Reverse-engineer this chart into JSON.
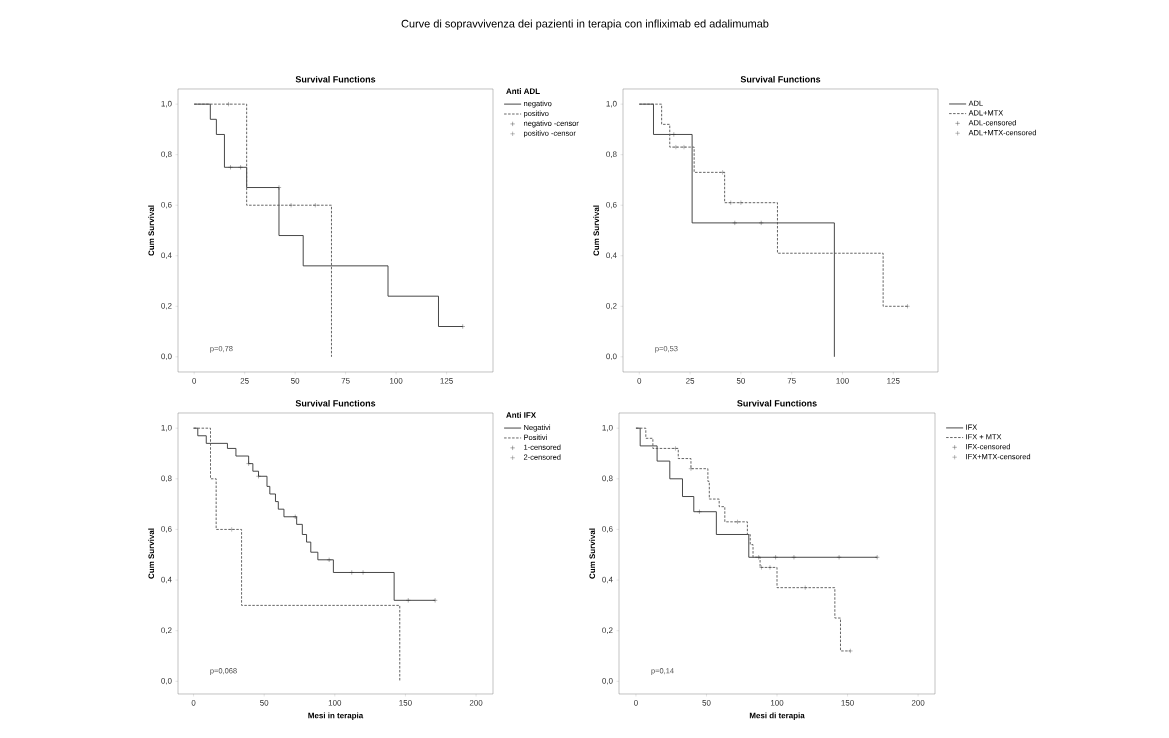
{
  "chart_data": [
    {
      "type": "step",
      "title": "Curve di sopravvivenza dei pazienti in terapia con infliximab ed adalimumab",
      "subtitle": "Survival Functions",
      "ylabel": "Cum Survival",
      "legend_title": "Anti ADL",
      "legend": "right",
      "annotations": [
        "p=0,78"
      ],
      "xlim": [
        -8,
        148
      ],
      "ylim": [
        -0.06,
        1.06
      ],
      "xticks": [
        0,
        25,
        50,
        75,
        100,
        125
      ],
      "yticks": [
        {
          "value": 0,
          "label": "0,0"
        },
        {
          "value": 0.2,
          "label": "0,2"
        },
        {
          "value": 0.4,
          "label": "0,4"
        },
        {
          "value": 0.6,
          "label": "0,6"
        },
        {
          "value": 0.8,
          "label": "0,8"
        },
        {
          "value": 1,
          "label": "1,0"
        }
      ],
      "series": [
        {
          "name": "negativo",
          "line_style": "solid",
          "color": "#333333",
          "x": [
            0,
            8,
            11,
            15,
            26,
            42,
            54,
            96,
            121,
            133
          ],
          "values": [
            1,
            0.94,
            0.88,
            0.75,
            0.67,
            0.48,
            0.36,
            0.24,
            0.12,
            0.12
          ]
        },
        {
          "name": "positivo",
          "line_style": "dashed",
          "color": "#555555",
          "x": [
            0,
            26,
            68
          ],
          "values": [
            1,
            0.6,
            0
          ]
        },
        {
          "name": "negativo -censor",
          "type": "scatter",
          "marker": "cross",
          "color": "#333333",
          "x": [
            18,
            23,
            42,
            133
          ],
          "values": [
            0.75,
            0.75,
            0.67,
            0.12
          ]
        },
        {
          "name": "positivo -censor",
          "type": "scatter",
          "marker": "cross",
          "color": "#555555",
          "x": [
            17,
            48,
            60
          ],
          "values": [
            1,
            0.6,
            0.6
          ]
        }
      ]
    },
    {
      "type": "step",
      "subtitle": "Survival Functions",
      "ylabel": "Cum Survival",
      "legend": "right",
      "annotations": [
        "p=0,53"
      ],
      "xlim": [
        -8,
        147
      ],
      "ylim": [
        -0.06,
        1.06
      ],
      "xticks": [
        0,
        25,
        50,
        75,
        100,
        125
      ],
      "yticks": [
        {
          "value": 0,
          "label": "0,0"
        },
        {
          "value": 0.2,
          "label": "0,2"
        },
        {
          "value": 0.4,
          "label": "0,4"
        },
        {
          "value": 0.6,
          "label": "0,6"
        },
        {
          "value": 0.8,
          "label": "0,8"
        },
        {
          "value": 1,
          "label": "1,0"
        }
      ],
      "series": [
        {
          "name": "ADL",
          "line_style": "solid",
          "color": "#333333",
          "x": [
            0,
            7,
            26,
            96
          ],
          "values": [
            1,
            0.88,
            0.53,
            0
          ]
        },
        {
          "name": "ADL+MTX",
          "line_style": "dashed",
          "color": "#555555",
          "x": [
            0,
            11,
            15,
            27,
            42,
            68,
            120,
            132
          ],
          "values": [
            1,
            0.92,
            0.83,
            0.73,
            0.61,
            0.41,
            0.2,
            0.2
          ]
        },
        {
          "name": "ADL-censored",
          "type": "scatter",
          "marker": "cross",
          "color": "#333333",
          "x": [
            17,
            47,
            60
          ],
          "values": [
            0.88,
            0.53,
            0.53
          ]
        },
        {
          "name": "ADL+MTX-censored",
          "type": "scatter",
          "marker": "cross",
          "color": "#555555",
          "x": [
            18,
            22,
            41,
            45,
            50,
            132
          ],
          "values": [
            0.83,
            0.83,
            0.73,
            0.61,
            0.61,
            0.2
          ]
        }
      ]
    },
    {
      "type": "step",
      "subtitle": "Survival Functions",
      "xlabel": "Mesi in terapia",
      "ylabel": "Cum Survival",
      "legend_title": "Anti IFX",
      "legend": "right",
      "annotations": [
        "p=0,068"
      ],
      "xlim": [
        -11,
        212
      ],
      "ylim": [
        -0.05,
        1.06
      ],
      "xticks": [
        0,
        50,
        100,
        150,
        200
      ],
      "yticks": [
        {
          "value": 0,
          "label": "0,0"
        },
        {
          "value": 0.2,
          "label": "0,2"
        },
        {
          "value": 0.4,
          "label": "0,4"
        },
        {
          "value": 0.6,
          "label": "0,6"
        },
        {
          "value": 0.8,
          "label": "0,8"
        },
        {
          "value": 1,
          "label": "1,0"
        }
      ],
      "series": [
        {
          "name": "Negativi",
          "line_style": "solid",
          "color": "#333333",
          "x": [
            0,
            3,
            9,
            24,
            30,
            39,
            42,
            46,
            52,
            54,
            58,
            60,
            64,
            73,
            77,
            80,
            83,
            88,
            99,
            142,
            171
          ],
          "values": [
            1,
            0.97,
            0.94,
            0.92,
            0.89,
            0.86,
            0.83,
            0.81,
            0.77,
            0.74,
            0.71,
            0.68,
            0.65,
            0.62,
            0.58,
            0.55,
            0.51,
            0.48,
            0.43,
            0.32,
            0.32
          ]
        },
        {
          "name": "Positivi",
          "line_style": "dashed",
          "color": "#555555",
          "x": [
            0,
            12,
            16,
            34,
            146
          ],
          "values": [
            1,
            0.8,
            0.6,
            0.3,
            0
          ]
        },
        {
          "name": "1-censored",
          "type": "scatter",
          "marker": "cross",
          "color": "#333333",
          "x": [
            39,
            46,
            72,
            96,
            112,
            120,
            152,
            171
          ],
          "values": [
            0.86,
            0.81,
            0.65,
            0.48,
            0.43,
            0.43,
            0.32,
            0.32
          ]
        },
        {
          "name": "2-censored",
          "type": "scatter",
          "marker": "cross",
          "color": "#555555",
          "x": [
            27
          ],
          "values": [
            0.6
          ]
        }
      ]
    },
    {
      "type": "step",
      "subtitle": "Survival Functions",
      "xlabel": "Mesi di terapia",
      "ylabel": "Cum Survival",
      "legend": "right",
      "annotations": [
        "p=0,14"
      ],
      "xlim": [
        -12,
        212
      ],
      "ylim": [
        -0.05,
        1.06
      ],
      "xticks": [
        0,
        50,
        100,
        150,
        200
      ],
      "yticks": [
        {
          "value": 0,
          "label": "0,0"
        },
        {
          "value": 0.2,
          "label": "0,2"
        },
        {
          "value": 0.4,
          "label": "0,4"
        },
        {
          "value": 0.6,
          "label": "0,6"
        },
        {
          "value": 0.8,
          "label": "0,8"
        },
        {
          "value": 1,
          "label": "1,0"
        }
      ],
      "series": [
        {
          "name": "IFX",
          "line_style": "solid",
          "color": "#333333",
          "x": [
            0,
            3,
            15,
            24,
            33,
            41,
            57,
            80,
            171
          ],
          "values": [
            1,
            0.93,
            0.87,
            0.8,
            0.73,
            0.67,
            0.58,
            0.49,
            0.49
          ]
        },
        {
          "name": "IFX + MTX",
          "line_style": "dashed",
          "color": "#555555",
          "x": [
            0,
            7,
            12,
            30,
            39,
            51,
            52,
            59,
            63,
            79,
            81,
            83,
            88,
            100,
            141,
            145,
            152
          ],
          "values": [
            1,
            0.96,
            0.92,
            0.88,
            0.84,
            0.79,
            0.72,
            0.69,
            0.63,
            0.58,
            0.54,
            0.49,
            0.45,
            0.37,
            0.25,
            0.12,
            0.12
          ]
        },
        {
          "name": "IFX-censored",
          "type": "scatter",
          "marker": "cross",
          "color": "#333333",
          "x": [
            45,
            87,
            99,
            112,
            144,
            171
          ],
          "values": [
            0.67,
            0.49,
            0.49,
            0.49,
            0.49,
            0.49
          ]
        },
        {
          "name": "IFX+MTX-censored",
          "type": "scatter",
          "marker": "cross",
          "color": "#555555",
          "x": [
            28,
            39,
            72,
            89,
            95,
            120,
            152
          ],
          "values": [
            0.92,
            0.84,
            0.63,
            0.45,
            0.45,
            0.37,
            0.12
          ]
        }
      ]
    }
  ]
}
